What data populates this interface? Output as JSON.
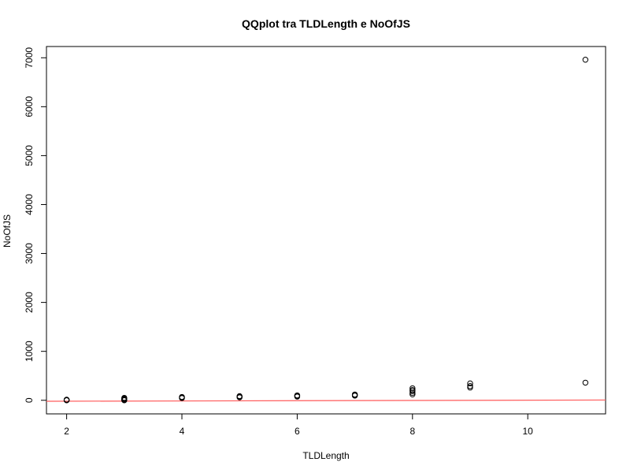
{
  "chart_data": {
    "type": "scatter",
    "title": "QQplot tra TLDLength e NoOfJS",
    "xlabel": "TLDLength",
    "ylabel": "NoOfJS",
    "xlim": [
      1.65,
      11.35
    ],
    "ylim": [
      -278,
      7230
    ],
    "xticks": [
      2,
      4,
      6,
      8,
      10
    ],
    "yticks": [
      0,
      1000,
      2000,
      3000,
      4000,
      5000,
      6000,
      7000
    ],
    "grid": false,
    "legend": "none",
    "points": [
      {
        "x": 2,
        "y": 0
      },
      {
        "x": 2,
        "y": 3
      },
      {
        "x": 2,
        "y": 8
      },
      {
        "x": 2,
        "y": 12
      },
      {
        "x": 3,
        "y": 0
      },
      {
        "x": 3,
        "y": 8
      },
      {
        "x": 3,
        "y": 20
      },
      {
        "x": 3,
        "y": 35
      },
      {
        "x": 3,
        "y": 50
      },
      {
        "x": 4,
        "y": 45
      },
      {
        "x": 4,
        "y": 55
      },
      {
        "x": 4,
        "y": 68
      },
      {
        "x": 5,
        "y": 60
      },
      {
        "x": 5,
        "y": 72
      },
      {
        "x": 5,
        "y": 85
      },
      {
        "x": 6,
        "y": 75
      },
      {
        "x": 6,
        "y": 88
      },
      {
        "x": 6,
        "y": 100
      },
      {
        "x": 7,
        "y": 95
      },
      {
        "x": 7,
        "y": 105
      },
      {
        "x": 7,
        "y": 118
      },
      {
        "x": 8,
        "y": 120
      },
      {
        "x": 8,
        "y": 150
      },
      {
        "x": 8,
        "y": 185
      },
      {
        "x": 8,
        "y": 210
      },
      {
        "x": 8,
        "y": 245
      },
      {
        "x": 9,
        "y": 260
      },
      {
        "x": 9,
        "y": 290
      },
      {
        "x": 9,
        "y": 345
      },
      {
        "x": 11,
        "y": 360
      },
      {
        "x": 11,
        "y": 6960
      }
    ],
    "reference_line": {
      "color": "#ff5a5a",
      "x": [
        1.65,
        11.35
      ],
      "y": [
        -20,
        5
      ]
    },
    "point_color": "#000000"
  }
}
